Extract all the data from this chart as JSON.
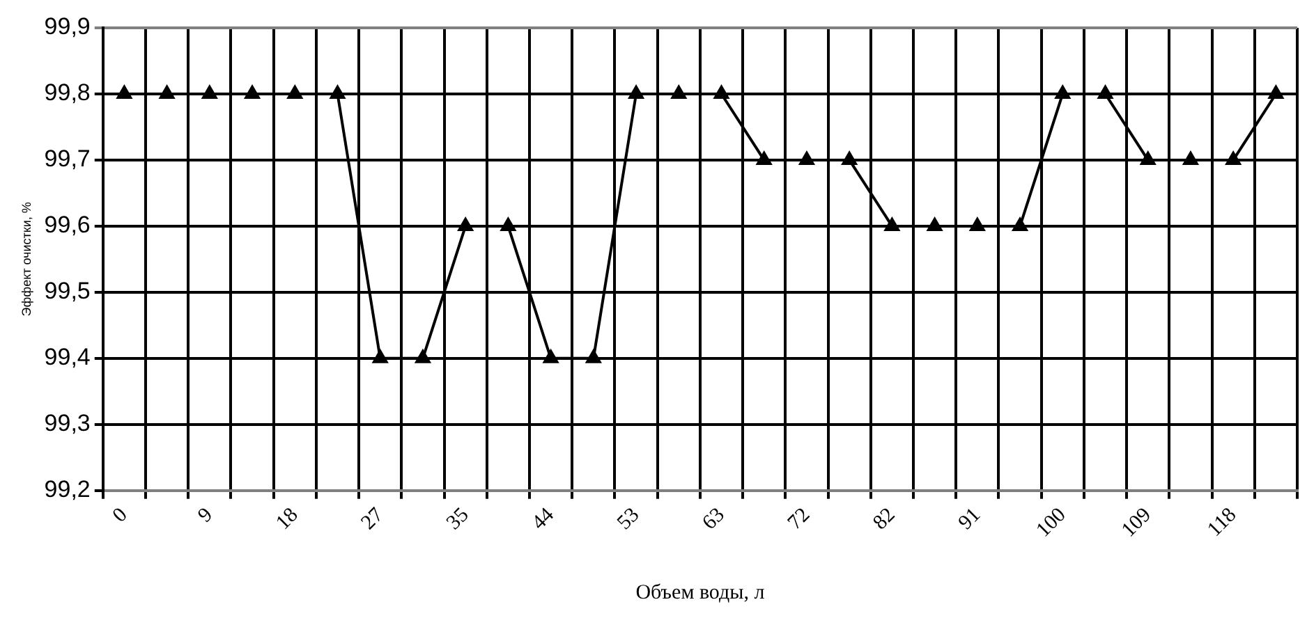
{
  "chart_data": {
    "type": "line",
    "xlabel": "Объем воды, л",
    "ylabel": "Эффект очистки, %",
    "categories": [
      "0",
      null,
      "9",
      null,
      "18",
      null,
      "27",
      null,
      "35",
      null,
      "44",
      null,
      "53",
      null,
      "63",
      null,
      "72",
      null,
      "82",
      null,
      "91",
      null,
      "100",
      null,
      "109",
      null,
      "118",
      null
    ],
    "series": [
      {
        "color": "#000000",
        "values": [
          99.8,
          99.8,
          99.8,
          99.8,
          99.8,
          99.8,
          99.4,
          99.4,
          99.6,
          99.6,
          99.4,
          99.4,
          99.8,
          99.8,
          99.8,
          99.7,
          99.7,
          99.7,
          99.6,
          99.6,
          99.6,
          99.6,
          99.8,
          99.8,
          99.7,
          99.7,
          99.7,
          99.8
        ]
      }
    ],
    "ylim": [
      99.2,
      99.9
    ],
    "yticks": [
      {
        "value": 99.2,
        "label": "99,2"
      },
      {
        "value": 99.3,
        "label": "99,3"
      },
      {
        "value": 99.4,
        "label": "99,4"
      },
      {
        "value": 99.5,
        "label": "99,5"
      },
      {
        "value": 99.6,
        "label": "99,6"
      },
      {
        "value": 99.7,
        "label": "99,7"
      },
      {
        "value": 99.8,
        "label": "99,8"
      },
      {
        "value": 99.9,
        "label": "99,9"
      }
    ],
    "grid": true,
    "legend": false,
    "marker": "triangle",
    "line_style": "solid"
  }
}
